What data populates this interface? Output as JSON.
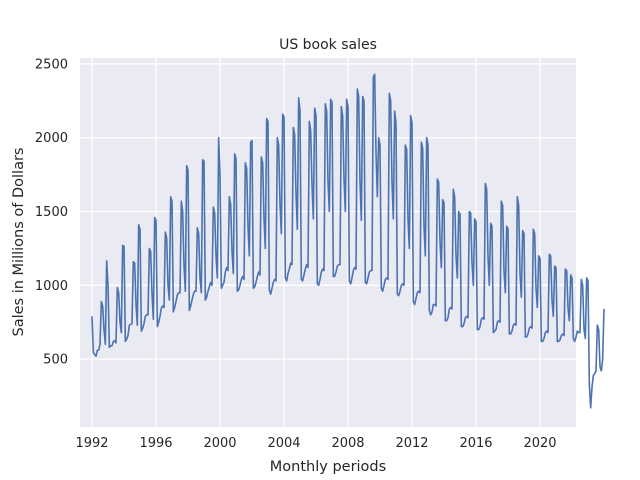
{
  "chart_data": {
    "type": "line",
    "title": "US book sales",
    "xlabel": "Monthly periods",
    "ylabel": "Sales in Millions of Dollars",
    "x_unit": "year (monthly samples, Jan 1992 – Jan 2021)",
    "xlim": [
      1991.25,
      2022.25
    ],
    "ylim": [
      40,
      2540
    ],
    "x_ticks": [
      1992,
      1996,
      2000,
      2004,
      2008,
      2012,
      2016,
      2020
    ],
    "y_ticks": [
      500,
      1000,
      1500,
      2000,
      2500
    ],
    "grid": true,
    "background": "#eaeaf2",
    "line_color": "#4c72b0",
    "series": [
      {
        "start_year": 1992,
        "frequency": "monthly",
        "values": [
          790,
          545,
          530,
          520,
          560,
          560,
          600,
          890,
          860,
          700,
          600,
          1165,
          1000,
          580,
          590,
          590,
          620,
          625,
          610,
          985,
          950,
          750,
          680,
          1270,
          1265,
          620,
          635,
          660,
          730,
          735,
          740,
          1160,
          1150,
          870,
          730,
          1410,
          1380,
          690,
          710,
          740,
          790,
          800,
          800,
          1250,
          1230,
          940,
          770,
          1460,
          1440,
          720,
          750,
          790,
          845,
          860,
          850,
          1360,
          1320,
          1000,
          900,
          1600,
          1570,
          820,
          850,
          890,
          935,
          950,
          950,
          1570,
          1500,
          1130,
          960,
          1810,
          1780,
          830,
          860,
          900,
          940,
          960,
          960,
          1390,
          1350,
          1050,
          950,
          1850,
          1840,
          900,
          920,
          960,
          990,
          1020,
          1000,
          1530,
          1490,
          1200,
          1050,
          2000,
          1740,
          980,
          1000,
          1020,
          1090,
          1120,
          1100,
          1600,
          1550,
          1230,
          1080,
          1890,
          1860,
          960,
          970,
          1000,
          1040,
          1060,
          1040,
          1830,
          1790,
          1400,
          1200,
          1970,
          1980,
          980,
          990,
          1020,
          1060,
          1090,
          1070,
          1870,
          1830,
          1450,
          1250,
          2130,
          2110,
          970,
          940,
          980,
          1020,
          1040,
          1030,
          2000,
          1950,
          1550,
          1350,
          2160,
          2140,
          1050,
          1030,
          1080,
          1110,
          1150,
          1140,
          2070,
          2020,
          1620,
          1380,
          2270,
          2180,
          1040,
          1030,
          1070,
          1110,
          1140,
          1120,
          2110,
          2050,
          1680,
          1450,
          2200,
          2150,
          1010,
          1000,
          1040,
          1090,
          1110,
          1100,
          2230,
          2180,
          1700,
          1500,
          2260,
          2240,
          1060,
          1060,
          1090,
          1130,
          1140,
          1140,
          2210,
          2150,
          1720,
          1500,
          2260,
          2210,
          1030,
          1010,
          1050,
          1100,
          1120,
          1110,
          2330,
          2280,
          1700,
          1440,
          2280,
          2250,
          1020,
          1010,
          1050,
          1090,
          1100,
          1100,
          2410,
          2430,
          1900,
          1600,
          2000,
          1950,
          980,
          960,
          1000,
          1040,
          1050,
          1040,
          2300,
          2250,
          1700,
          1450,
          2180,
          2100,
          940,
          930,
          960,
          1000,
          1010,
          1000,
          1950,
          1920,
          1450,
          1250,
          2150,
          2100,
          890,
          870,
          910,
          950,
          960,
          950,
          1970,
          1930,
          1400,
          1200,
          2000,
          1950,
          830,
          800,
          820,
          870,
          870,
          860,
          1720,
          1700,
          1300,
          1120,
          1580,
          1560,
          760,
          760,
          780,
          840,
          850,
          840,
          1650,
          1600,
          1200,
          1050,
          1500,
          1480,
          720,
          720,
          740,
          780,
          790,
          780,
          1500,
          1490,
          1150,
          1000,
          1450,
          1430,
          700,
          700,
          720,
          770,
          780,
          770,
          1690,
          1650,
          1200,
          1000,
          1420,
          1400,
          680,
          690,
          700,
          750,
          760,
          750,
          1570,
          1540,
          1100,
          950,
          1400,
          1380,
          670,
          670,
          690,
          730,
          740,
          730,
          1600,
          1540,
          1080,
          920,
          1370,
          1350,
          650,
          650,
          670,
          710,
          720,
          710,
          1380,
          1350,
          980,
          850,
          1200,
          1180,
          620,
          620,
          640,
          680,
          690,
          680,
          1210,
          1200,
          900,
          790,
          1130,
          1120,
          620,
          620,
          630,
          660,
          670,
          660,
          1110,
          1100,
          850,
          760,
          1070,
          1050,
          640,
          620,
          650,
          690,
          680,
          680,
          1040,
          1000,
          700,
          640,
          1050,
          1030,
          330,
          170,
          310,
          390,
          400,
          420,
          730,
          700,
          450,
          420,
          500,
          840
        ]
      }
    ]
  }
}
